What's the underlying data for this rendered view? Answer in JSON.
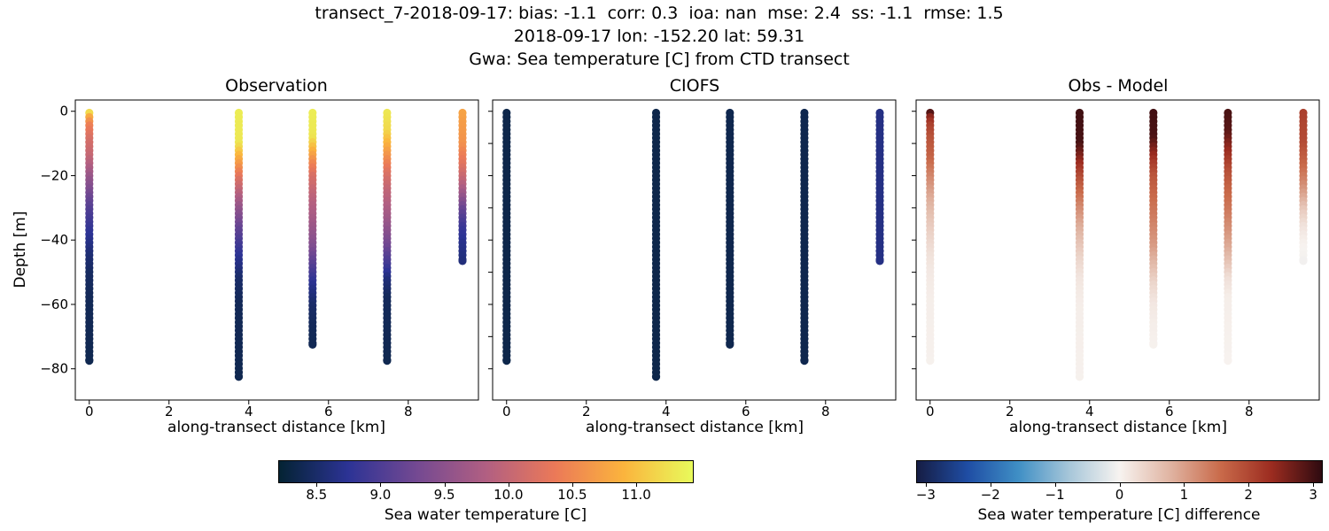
{
  "suptitle": {
    "line1": "transect_7-2018-09-17: bias: -1.1  corr: 0.3  ioa: nan  mse: 2.4  ss: -1.1  rmse: 1.5",
    "line2": "2018-09-17 lon: -152.20 lat: 59.31",
    "line3": "Gwa: Sea temperature [C] from CTD transect"
  },
  "stats": {
    "transect_id": "transect_7-2018-09-17",
    "bias": "-1.1",
    "corr": "0.3",
    "ioa": "nan",
    "mse": "2.4",
    "ss": "-1.1",
    "rmse": "1.5",
    "date": "2018-09-17",
    "lon": "-152.20",
    "lat": "59.31"
  },
  "chart_data": {
    "type": "scatter",
    "description": "Three-panel CTD transect depth profiles of sea water temperature: observation, CIOFS model, and their difference.",
    "xlabel": "along-transect distance [km]",
    "ylabel": "Depth [m]",
    "xlim": [
      -0.35,
      9.76
    ],
    "ylim": [
      -89.7,
      3.5
    ],
    "xticks": {
      "values": [
        0,
        2,
        4,
        6,
        8
      ],
      "labels": [
        "0",
        "2",
        "4",
        "6",
        "8"
      ]
    },
    "yticks": {
      "values": [
        0,
        -20,
        -40,
        -60,
        -80
      ],
      "labels": [
        "0",
        "−20",
        "−40",
        "−60",
        "−80"
      ]
    },
    "yticks_unlabeled": [
      0,
      -10,
      -20,
      -30,
      -40,
      -50,
      -60,
      -70,
      -80
    ],
    "grid": false,
    "panels": [
      {
        "title": "Observation",
        "kind": "obs",
        "cmap": "temperature_cmap",
        "labeled_yticks": true
      },
      {
        "title": "CIOFS",
        "kind": "model",
        "cmap": "temperature_cmap",
        "labeled_yticks": false
      },
      {
        "title": "Obs - Model",
        "kind": "diff",
        "cmap": "difference_cmap",
        "labeled_yticks": false
      }
    ],
    "stations": [
      {
        "x_km": 0.0,
        "depth_top_m": -0.5,
        "depth_bottom_m": -77.5,
        "model_value_C": 8.33,
        "obs_profile_C": [
          [
            -0.5,
            11.2
          ],
          [
            -2,
            10.75
          ],
          [
            -4,
            10.45
          ],
          [
            -8,
            10.2
          ],
          [
            -14,
            10.0
          ],
          [
            -18,
            9.75
          ],
          [
            -22,
            9.5
          ],
          [
            -27,
            9.2
          ],
          [
            -32,
            8.97
          ],
          [
            -38,
            8.75
          ],
          [
            -44,
            8.57
          ],
          [
            -50,
            8.46
          ],
          [
            -58,
            8.4
          ],
          [
            -77.5,
            8.36
          ]
        ]
      },
      {
        "x_km": 3.75,
        "depth_top_m": -0.5,
        "depth_bottom_m": -82.5,
        "model_value_C": 8.33,
        "obs_profile_C": [
          [
            -0.5,
            11.35
          ],
          [
            -10,
            11.3
          ],
          [
            -14,
            10.9
          ],
          [
            -18,
            10.5
          ],
          [
            -22,
            10.15
          ],
          [
            -26,
            9.85
          ],
          [
            -31,
            9.5
          ],
          [
            -36,
            9.18
          ],
          [
            -41,
            8.93
          ],
          [
            -46,
            8.7
          ],
          [
            -52,
            8.5
          ],
          [
            -60,
            8.4
          ],
          [
            -82.5,
            8.36
          ]
        ]
      },
      {
        "x_km": 5.6,
        "depth_top_m": -0.5,
        "depth_bottom_m": -72.5,
        "model_value_C": 8.35,
        "obs_profile_C": [
          [
            -0.5,
            11.35
          ],
          [
            -8,
            11.3
          ],
          [
            -12,
            10.9
          ],
          [
            -16,
            10.5
          ],
          [
            -20,
            10.2
          ],
          [
            -26,
            9.95
          ],
          [
            -34,
            9.7
          ],
          [
            -42,
            9.4
          ],
          [
            -48,
            9.05
          ],
          [
            -54,
            8.7
          ],
          [
            -60,
            8.5
          ],
          [
            -66,
            8.42
          ],
          [
            -72.5,
            8.38
          ]
        ]
      },
      {
        "x_km": 7.47,
        "depth_top_m": -0.5,
        "depth_bottom_m": -77.5,
        "model_value_C": 8.35,
        "obs_profile_C": [
          [
            -0.5,
            11.3
          ],
          [
            -6,
            11.2
          ],
          [
            -10,
            10.9
          ],
          [
            -14,
            10.6
          ],
          [
            -18,
            10.3
          ],
          [
            -24,
            10.0
          ],
          [
            -30,
            9.8
          ],
          [
            -36,
            9.55
          ],
          [
            -42,
            9.25
          ],
          [
            -47,
            8.95
          ],
          [
            -52,
            8.6
          ],
          [
            -58,
            8.42
          ],
          [
            -77.5,
            8.36
          ]
        ]
      },
      {
        "x_km": 9.36,
        "depth_top_m": -0.5,
        "depth_bottom_m": -46.5,
        "model_value_C": 8.65,
        "obs_profile_C": [
          [
            -0.5,
            10.75
          ],
          [
            -10,
            10.6
          ],
          [
            -16,
            10.3
          ],
          [
            -21,
            10.0
          ],
          [
            -26,
            9.6
          ],
          [
            -31,
            9.15
          ],
          [
            -36,
            8.85
          ],
          [
            -41,
            8.68
          ],
          [
            -46.5,
            8.6
          ]
        ]
      }
    ],
    "colormaps": {
      "temperature_cmap": {
        "name": "thermal",
        "range": [
          8.2,
          11.45
        ],
        "stops": [
          [
            0.0,
            "#042333"
          ],
          [
            0.1667,
            "#2c3395"
          ],
          [
            0.3333,
            "#744992"
          ],
          [
            0.5,
            "#b15f82"
          ],
          [
            0.6667,
            "#eb7958"
          ],
          [
            0.8333,
            "#fbb43d"
          ],
          [
            1.0,
            "#e8fa5b"
          ]
        ]
      },
      "difference_cmap": {
        "name": "balance",
        "range": [
          -3.15,
          3.15
        ],
        "stops": [
          [
            0.0,
            "#161d44"
          ],
          [
            0.125,
            "#1f4da4"
          ],
          [
            0.25,
            "#3f8fc5"
          ],
          [
            0.375,
            "#a6c6d9"
          ],
          [
            0.5,
            "#f7f3f0"
          ],
          [
            0.625,
            "#e0b4a2"
          ],
          [
            0.75,
            "#c96a4a"
          ],
          [
            0.875,
            "#9c2c20"
          ],
          [
            1.0,
            "#2e0a10"
          ]
        ]
      }
    },
    "colorbars": [
      {
        "label": "Sea water temperature [C]",
        "cmap": "temperature_cmap",
        "ticks": {
          "values": [
            8.5,
            9.0,
            9.5,
            10.0,
            10.5,
            11.0
          ],
          "labels": [
            "8.5",
            "9.0",
            "9.5",
            "10.0",
            "10.5",
            "11.0"
          ]
        }
      },
      {
        "label": "Sea water temperature [C] difference",
        "cmap": "difference_cmap",
        "ticks": {
          "values": [
            -3,
            -2,
            -1,
            0,
            1,
            2,
            3
          ],
          "labels": [
            "−3",
            "−2",
            "−1",
            "0",
            "1",
            "2",
            "3"
          ]
        }
      }
    ]
  }
}
